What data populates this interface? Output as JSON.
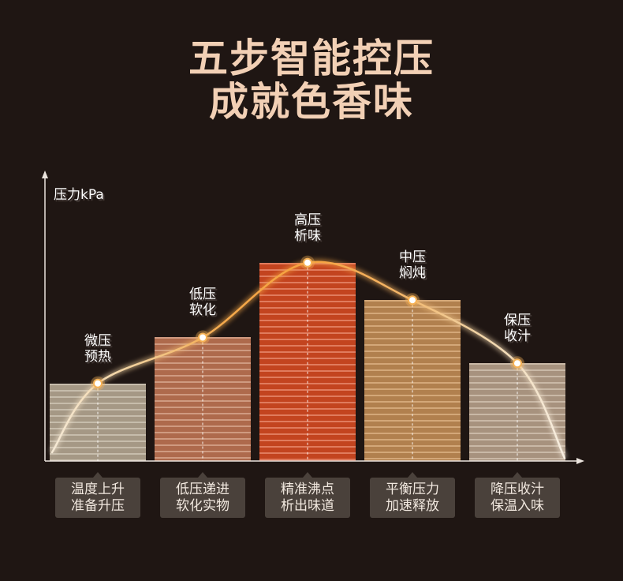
{
  "header": {
    "title_line1": "五步智能控压",
    "title_line2": "成就色香味"
  },
  "colors": {
    "background": "#1f1613",
    "title": "#f2d0b5",
    "axis": "#ebe4de",
    "label_text": "#ffffff",
    "box_bg": "#4a413b",
    "box_text": "#f1e8df",
    "guide": "#ffffff",
    "marker_fill": "#ffffff",
    "marker_ring": "#f6b255",
    "curve": [
      "#f5e9d6",
      "#f2cf98",
      "#f4a94c",
      "#f6a23e",
      "#f3b465",
      "#f0d3a6",
      "#f7eee1"
    ],
    "bars": [
      {
        "base": "#a59885",
        "stripe": "#c6bcab"
      },
      {
        "base": "#ae6a4c",
        "stripe": "#cf9a80"
      },
      {
        "base": "#c3441f",
        "stripe": "#e07b5d"
      },
      {
        "base": "#b1804e",
        "stripe": "#d3a778"
      },
      {
        "base": "#a7927e",
        "stripe": "#c9b8a6"
      }
    ]
  },
  "chart_data": {
    "type": "bar",
    "xlabel": "",
    "ylabel": "压力kPa",
    "ylim": [
      0,
      1
    ],
    "grid": false,
    "categories": [
      [
        "微压",
        "预热"
      ],
      [
        "低压",
        "软化"
      ],
      [
        "高压",
        "析味"
      ],
      [
        "中压",
        "焖炖"
      ],
      [
        "保压",
        "收汁"
      ]
    ],
    "values": [
      0.27,
      0.43,
      0.69,
      0.56,
      0.34
    ],
    "descriptions": [
      [
        "温度上升",
        "准备升压"
      ],
      [
        "低压递进",
        "软化实物"
      ],
      [
        "精准沸点",
        "析出味道"
      ],
      [
        "平衡压力",
        "加速释放"
      ],
      [
        "降压收汁",
        "保温入味"
      ]
    ],
    "curve": {
      "start_value": 0.03,
      "end_value": 0.01
    }
  }
}
